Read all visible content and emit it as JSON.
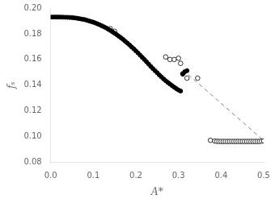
{
  "chart_data": {
    "type": "scatter",
    "title": "",
    "xlabel": "A*",
    "ylabel": "fₛ",
    "xlim": [
      0,
      0.5
    ],
    "ylim": [
      0.08,
      0.2
    ],
    "xticks": [
      {
        "value": 0,
        "label": "0.0"
      },
      0.1,
      0.2,
      0.3,
      0.4,
      0.5
    ],
    "yticks": [
      0.08,
      {
        "value": 0.1,
        "label": "0.10"
      },
      0.12,
      0.14,
      0.16,
      0.18,
      {
        "value": 0.2,
        "label": "0.20"
      }
    ],
    "grid": false,
    "series": [
      {
        "type": "scatter",
        "marker": "filled_circle",
        "color": "#000000",
        "x": [
          0.0,
          0.005,
          0.01,
          0.015,
          0.02,
          0.025,
          0.03,
          0.035,
          0.04,
          0.045,
          0.05,
          0.055,
          0.06,
          0.065,
          0.07,
          0.075,
          0.08,
          0.085,
          0.09,
          0.095,
          0.1,
          0.105,
          0.11,
          0.115,
          0.12,
          0.125,
          0.13,
          0.135,
          0.14,
          0.145,
          0.15,
          0.155,
          0.16,
          0.165,
          0.17,
          0.175,
          0.18,
          0.185,
          0.19,
          0.195,
          0.2,
          0.205,
          0.21,
          0.215,
          0.22,
          0.225,
          0.23,
          0.235,
          0.24,
          0.245,
          0.25,
          0.255,
          0.26,
          0.265,
          0.27,
          0.275,
          0.28,
          0.285,
          0.29,
          0.295,
          0.3,
          0.305,
          0.31,
          0.315,
          0.32
        ],
        "values": [
          0.193,
          0.193,
          0.193,
          0.193,
          0.193,
          0.1929,
          0.1929,
          0.1928,
          0.1928,
          0.1927,
          0.1926,
          0.1924,
          0.1922,
          0.1919,
          0.1916,
          0.1913,
          0.191,
          0.1905,
          0.19,
          0.1895,
          0.189,
          0.1884,
          0.1877,
          0.187,
          0.1862,
          0.1854,
          0.1846,
          0.1836,
          0.1826,
          0.1815,
          0.1804,
          0.1793,
          0.1781,
          0.1769,
          0.1756,
          0.1742,
          0.1728,
          0.1713,
          0.1698,
          0.1683,
          0.1667,
          0.1651,
          0.1634,
          0.1617,
          0.16,
          0.1582,
          0.1564,
          0.1546,
          0.1529,
          0.1513,
          0.1497,
          0.148,
          0.1464,
          0.1449,
          0.1435,
          0.1422,
          0.1409,
          0.1397,
          0.1385,
          0.1373,
          0.1363,
          0.1355,
          0.1487,
          0.1505,
          0.1513
        ]
      },
      {
        "type": "scatter",
        "marker": "open_circle",
        "color": "#000000",
        "x": [
          0.14,
          0.15,
          0.27,
          0.28,
          0.29,
          0.3,
          0.305,
          0.31,
          0.32,
          0.345
        ],
        "values": [
          0.184,
          0.182,
          0.162,
          0.16,
          0.16,
          0.161,
          0.157,
          0.149,
          0.1455,
          0.1455
        ]
      },
      {
        "type": "scatter",
        "marker": "open_circle",
        "color": "#000000",
        "x": [
          0.375,
          0.385,
          0.39,
          0.395,
          0.4,
          0.405,
          0.41,
          0.415,
          0.42,
          0.425,
          0.43,
          0.435,
          0.44,
          0.445,
          0.45,
          0.455,
          0.46,
          0.465,
          0.47,
          0.475,
          0.48,
          0.485,
          0.49,
          0.495,
          0.5
        ],
        "values": [
          0.0972,
          0.0966,
          0.0964,
          0.0963,
          0.0963,
          0.0963,
          0.0963,
          0.0963,
          0.0963,
          0.0963,
          0.0963,
          0.0963,
          0.0963,
          0.0963,
          0.0963,
          0.0963,
          0.0963,
          0.0963,
          0.0963,
          0.0963,
          0.0963,
          0.0963,
          0.0963,
          0.0965,
          0.0967
        ]
      },
      {
        "type": "line",
        "line_style": "dashed",
        "color": "#808080",
        "x": [
          0.31,
          0.5
        ],
        "values": [
          0.152,
          0.097
        ]
      }
    ]
  }
}
